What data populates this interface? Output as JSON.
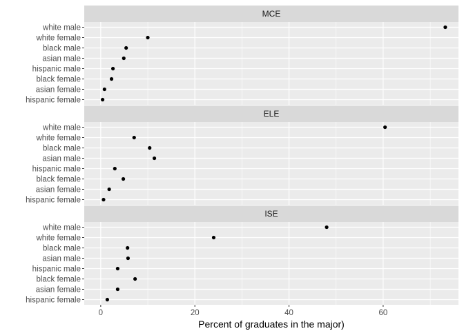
{
  "chart_data": {
    "type": "scatter",
    "xlabel": "Percent of graduates in the major)",
    "ylabel": "",
    "xlim": [
      -3.5,
      76
    ],
    "xticks": [
      0,
      20,
      40,
      60
    ],
    "categories": [
      "white male",
      "white female",
      "black male",
      "asian male",
      "hispanic male",
      "black female",
      "asian female",
      "hispanic female"
    ],
    "panels": [
      {
        "name": "MCE",
        "values": [
          73.2,
          10.0,
          5.4,
          4.9,
          2.6,
          2.3,
          0.8,
          0.4
        ]
      },
      {
        "name": "ELE",
        "values": [
          60.4,
          7.1,
          10.4,
          11.4,
          3.0,
          4.8,
          1.8,
          0.6
        ]
      },
      {
        "name": "ISE",
        "values": [
          48.0,
          24.0,
          5.7,
          5.8,
          3.6,
          7.3,
          3.6,
          1.4
        ]
      }
    ],
    "colors": {
      "panel_background": "#ebebeb",
      "strip_background": "#d9d9d9",
      "gridline": "#ffffff",
      "point": "#000000"
    }
  }
}
